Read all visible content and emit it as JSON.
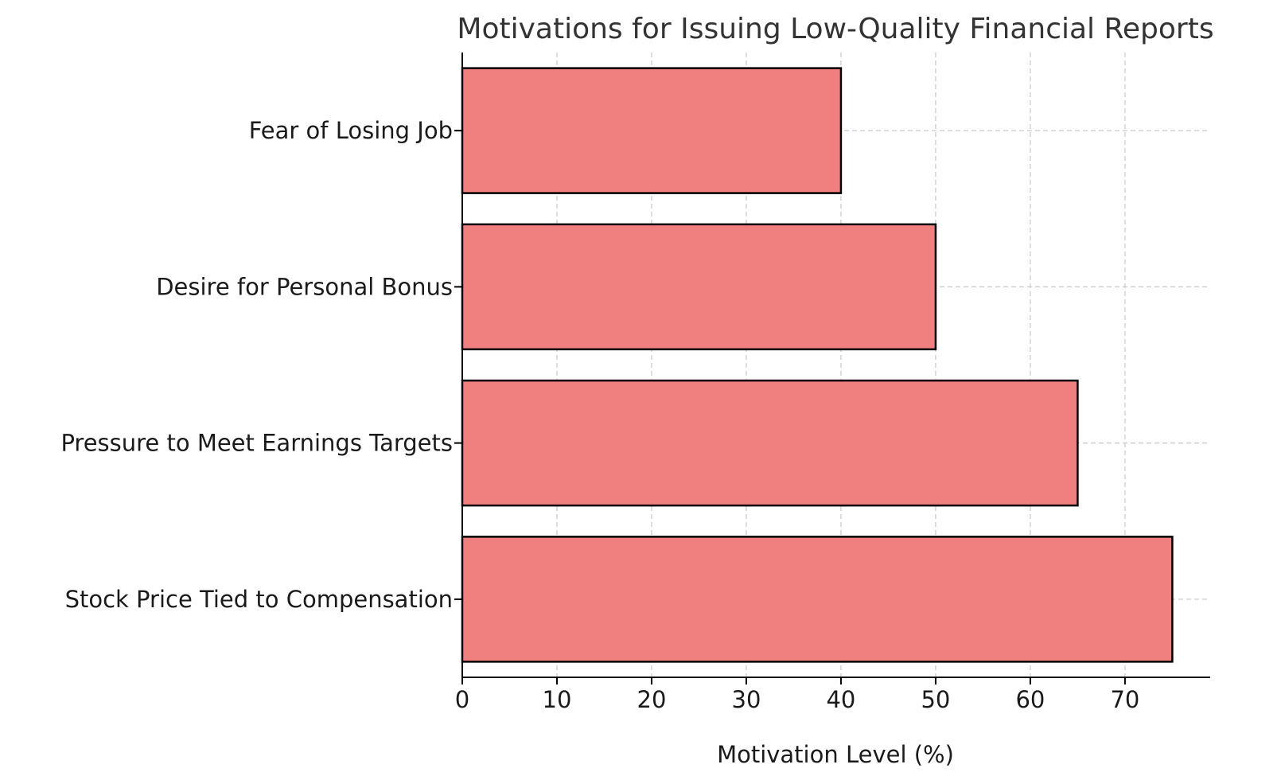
{
  "chart_data": {
    "type": "bar",
    "orientation": "horizontal",
    "title": "Motivations for Issuing Low-Quality Financial Reports",
    "xlabel": "Motivation Level (%)",
    "ylabel": "",
    "categories": [
      "Stock Price Tied to Compensation",
      "Pressure to Meet Earnings Targets",
      "Desire for Personal Bonus",
      "Fear of Losing Job"
    ],
    "values": [
      75,
      65,
      50,
      40
    ],
    "xlim": [
      0,
      79
    ],
    "xticks": [
      0,
      10,
      20,
      30,
      40,
      50,
      60,
      70
    ],
    "grid": true,
    "bar_color": "#f08080",
    "edge_color": "#000000"
  }
}
